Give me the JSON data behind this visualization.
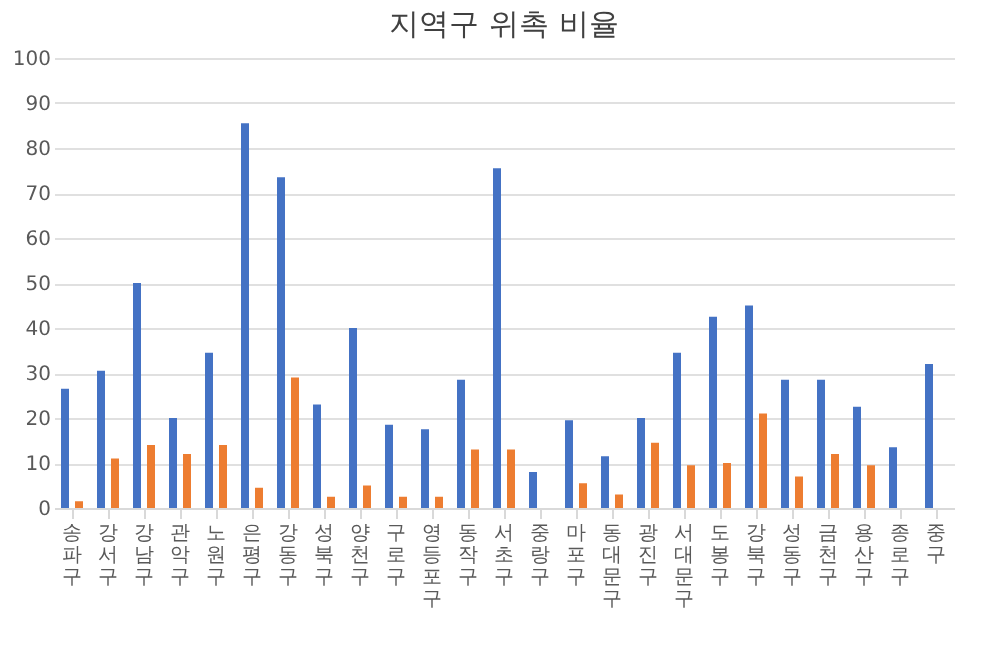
{
  "chart_data": {
    "type": "bar",
    "title": "지역구 위촉 비율",
    "categories": [
      "송파구",
      "강서구",
      "강남구",
      "관악구",
      "노원구",
      "은평구",
      "강동구",
      "성북구",
      "양천구",
      "구로구",
      "영등포구",
      "동작구",
      "서초구",
      "중랑구",
      "마포구",
      "동대문구",
      "광진구",
      "서대문구",
      "도봉구",
      "강북구",
      "성동구",
      "금천구",
      "용산구",
      "종로구",
      "중구"
    ],
    "series": [
      {
        "color": "#4472c4",
        "values": [
          26.5,
          30.5,
          50,
          20,
          34.5,
          85.5,
          73.5,
          23,
          40,
          18.5,
          17.5,
          28.5,
          75.5,
          8,
          19.5,
          11.5,
          20,
          34.5,
          42.5,
          45,
          28.5,
          28.5,
          22.5,
          13.5,
          32
        ]
      },
      {
        "color": "#ed7d31",
        "values": [
          1.5,
          11,
          14,
          12,
          14,
          4.5,
          29,
          2.5,
          5,
          2.5,
          2.5,
          13,
          13,
          null,
          5.5,
          3,
          14.5,
          9.5,
          10,
          21,
          7,
          12,
          9.5,
          null,
          null
        ]
      }
    ],
    "ylim": [
      0,
      100
    ],
    "yticks": [
      0,
      10,
      20,
      30,
      40,
      50,
      60,
      70,
      80,
      90,
      100
    ],
    "grid": "y"
  }
}
